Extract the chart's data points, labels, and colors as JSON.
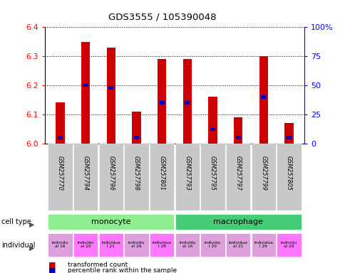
{
  "title": "GDS3555 / 105390048",
  "samples": [
    "GSM257770",
    "GSM257794",
    "GSM257796",
    "GSM257798",
    "GSM257801",
    "GSM257793",
    "GSM257795",
    "GSM257797",
    "GSM257799",
    "GSM257805"
  ],
  "transformed_counts": [
    6.14,
    6.35,
    6.33,
    6.11,
    6.29,
    6.29,
    6.16,
    6.09,
    6.3,
    6.07
  ],
  "percentile_ranks": [
    5,
    50,
    48,
    5,
    35,
    35,
    12,
    5,
    40,
    5
  ],
  "ylim_left": [
    6.0,
    6.4
  ],
  "ylim_right": [
    0,
    100
  ],
  "yticks_left": [
    6.0,
    6.1,
    6.2,
    6.3,
    6.4
  ],
  "yticks_right": [
    0,
    25,
    50,
    75,
    100
  ],
  "ytick_labels_right": [
    "0",
    "25",
    "50",
    "75",
    "100%"
  ],
  "individual_display": [
    "individu\nal 16",
    "individu\nal 20",
    "individua\nl 21",
    "individu\nal 26",
    "individua\nl 28",
    "individu\nal 16",
    "individu\nl 20",
    "individua\nal 21",
    "individua\nl 26",
    "individu\nal 28"
  ],
  "individual_colors": [
    "#DDA0DD",
    "#FF77FF",
    "#FF77FF",
    "#DDA0DD",
    "#FF77FF",
    "#DDA0DD",
    "#DDA0DD",
    "#DDA0DD",
    "#DDA0DD",
    "#FF77FF"
  ],
  "bar_color_red": "#CC0000",
  "bar_color_blue": "#0000CC",
  "base_value": 6.0,
  "bar_width": 0.35,
  "monocyte_color": "#90EE90",
  "macrophage_color": "#44CC77",
  "sample_label_bg": "#C8C8C8"
}
